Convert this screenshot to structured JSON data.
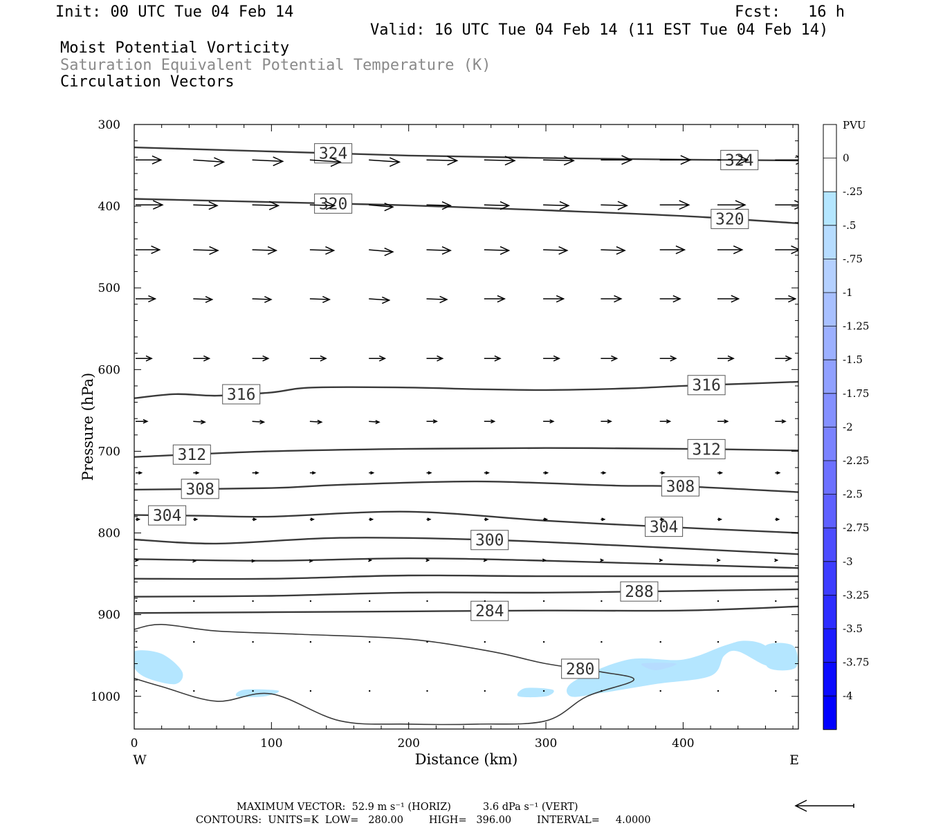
{
  "header": {
    "init": "Init: 00 UTC Tue 04 Feb 14",
    "fcst": "Fcst:   16 h",
    "valid": "Valid: 16 UTC Tue 04 Feb 14 (11 EST Tue 04 Feb 14)",
    "field1": "Moist Potential Vorticity",
    "field2": "Saturation Equivalent Potential Temperature (K)",
    "field3": "Circulation Vectors"
  },
  "colors": {
    "field2_text": "#8a8a8a",
    "contour": "#3a3a3a",
    "vector": "#000000"
  },
  "chart_data": {
    "type": "cross-section",
    "xlabel": "Distance (km)",
    "ylabel": "Pressure (hPa)",
    "xlim": [
      0,
      484
    ],
    "ylim": [
      1040,
      300
    ],
    "x_ticks": [
      "0",
      "100",
      "200",
      "300",
      "400"
    ],
    "x_tick_values": [
      0,
      100,
      200,
      300,
      400
    ],
    "y_ticks": [
      "300",
      "400",
      "500",
      "600",
      "700",
      "800",
      "900",
      "1000"
    ],
    "y_tick_values": [
      300,
      400,
      500,
      600,
      700,
      800,
      900,
      1000
    ],
    "west_label": "W",
    "east_label": "E",
    "theta_e_contours": [
      {
        "value": 324,
        "label": "324",
        "x": [
          0,
          100,
          200,
          300,
          400,
          484
        ],
        "p": [
          328,
          333,
          338,
          341,
          343,
          344
        ],
        "label_x": [
          145,
          441
        ]
      },
      {
        "value": 320,
        "label": "320",
        "x": [
          0,
          100,
          200,
          300,
          400,
          484
        ],
        "p": [
          391,
          395,
          399,
          405,
          412,
          421
        ],
        "label_x": [
          145,
          434
        ]
      },
      {
        "value": 316,
        "label": "316",
        "x": [
          0,
          30,
          60,
          100,
          130,
          200,
          250,
          300,
          360,
          400,
          450,
          484
        ],
        "p": [
          635,
          630,
          632,
          628,
          622,
          622,
          624,
          625,
          623,
          620,
          617,
          615
        ],
        "label_x": [
          78,
          417
        ]
      },
      {
        "value": 312,
        "label": "312",
        "x": [
          0,
          100,
          200,
          300,
          400,
          484
        ],
        "p": [
          707,
          700,
          697,
          696,
          697,
          699
        ],
        "label_x": [
          42,
          417
        ]
      },
      {
        "value": 308,
        "label": "308",
        "x": [
          0,
          100,
          150,
          250,
          350,
          400,
          484
        ],
        "p": [
          747,
          745,
          741,
          737,
          742,
          743,
          750
        ],
        "label_x": [
          48,
          398
        ]
      },
      {
        "value": 304,
        "label": "304",
        "x": [
          0,
          50,
          100,
          200,
          300,
          380,
          484
        ],
        "p": [
          778,
          779,
          780,
          774,
          785,
          792,
          800
        ],
        "label_x": [
          24,
          386
        ]
      },
      {
        "value": 300,
        "label": "300",
        "x": [
          0,
          60,
          150,
          250,
          350,
          484
        ],
        "p": [
          808,
          813,
          806,
          808,
          815,
          826
        ],
        "label_x": [
          259
        ]
      },
      {
        "value": 296,
        "label": "",
        "x": [
          0,
          100,
          200,
          300,
          484
        ],
        "p": [
          832,
          834,
          831,
          834,
          843
        ],
        "label_x": []
      },
      {
        "value": 292,
        "label": "",
        "x": [
          0,
          100,
          200,
          300,
          484
        ],
        "p": [
          856,
          856,
          852,
          853,
          853
        ],
        "label_x": []
      },
      {
        "value": 288,
        "label": "288",
        "x": [
          0,
          100,
          200,
          300,
          400,
          484
        ],
        "p": [
          878,
          877,
          873,
          873,
          871,
          869
        ],
        "label_x": [
          368
        ]
      },
      {
        "value": 284,
        "label": "284",
        "x": [
          0,
          100,
          200,
          300,
          400,
          484
        ],
        "p": [
          898,
          897,
          896,
          895,
          895,
          890
        ],
        "label_x": [
          259
        ]
      },
      {
        "value": 280,
        "label": "280",
        "x": [
          0,
          20,
          60,
          120,
          200,
          260,
          300,
          340,
          364,
          330,
          300,
          250,
          200,
          150,
          100,
          60,
          20,
          0
        ],
        "p": [
          918,
          912,
          920,
          924,
          930,
          945,
          960,
          970,
          980,
          1000,
          1030,
          1034,
          1034,
          1030,
          997,
          1006,
          988,
          978
        ],
        "label_x": [
          325
        ]
      }
    ],
    "mpv_colorbar": {
      "unit": "PVU",
      "levels": [
        "0",
        "-.25",
        "-.5",
        "-.75",
        "-1",
        "-1.25",
        "-1.5",
        "-1.75",
        "-2",
        "-2.25",
        "-2.5",
        "-2.75",
        "-3",
        "-3.25",
        "-3.5",
        "-3.75",
        "-4"
      ],
      "colors": [
        "#ffffff",
        "#ffffff",
        "#b4e6ff",
        "#b6dcff",
        "#b4d0ff",
        "#a8c0ff",
        "#9cb0ff",
        "#90a0ff",
        "#8490ff",
        "#7a82ff",
        "#6c70ff",
        "#5e60ff",
        "#4c4cff",
        "#3c3cff",
        "#2c2cff",
        "#1c1cff",
        "#0a0aff",
        "#0000ff"
      ]
    },
    "mpv_regions": [
      {
        "level": "-.25",
        "x": [
          0,
          20,
          35,
          30,
          10,
          0
        ],
        "p": [
          945,
          948,
          970,
          985,
          978,
          965
        ]
      },
      {
        "level": "-.25",
        "x": [
          80,
          105,
          95,
          75
        ],
        "p": [
          992,
          993,
          1000,
          1000
        ]
      },
      {
        "level": "-.25",
        "x": [
          285,
          305,
          300,
          280
        ],
        "p": [
          990,
          992,
          1000,
          1000
        ]
      },
      {
        "level": "-.25",
        "x": [
          320,
          360,
          400,
          430,
          445,
          460,
          470,
          460,
          440,
          430,
          420,
          380,
          340,
          318
        ],
        "p": [
          982,
          955,
          955,
          938,
          932,
          938,
          960,
          962,
          945,
          950,
          975,
          985,
          996,
          1000
        ]
      },
      {
        "level": "-.25",
        "x": [
          460,
          480,
          482,
          462
        ],
        "p": [
          938,
          938,
          965,
          965
        ]
      },
      {
        "level": "-.5",
        "x": [
          370,
          395,
          380
        ],
        "p": [
          960,
          960,
          968
        ]
      }
    ],
    "vectors": {
      "x_columns": [
        0,
        42,
        85,
        127,
        170,
        212,
        254,
        297,
        339,
        382,
        424,
        466
      ],
      "levels": [
        {
          "p": 340,
          "u": [
            35,
            42,
            42,
            42,
            42,
            42,
            42,
            42,
            42,
            42,
            42,
            42
          ],
          "dp": [
            0,
            3,
            2,
            3,
            3,
            1,
            1,
            1,
            0,
            0,
            0,
            0
          ]
        },
        {
          "p": 395,
          "u": [
            37,
            33,
            36,
            34,
            33,
            33,
            34,
            35,
            36,
            40,
            38,
            40
          ],
          "dp": [
            0,
            1,
            1,
            1,
            3,
            1,
            1,
            1,
            1,
            0,
            0,
            0
          ]
        },
        {
          "p": 450,
          "u": [
            33,
            34,
            33,
            33,
            33,
            33,
            34,
            33,
            33,
            34,
            34,
            34
          ],
          "dp": [
            0,
            1,
            1,
            1,
            3,
            1,
            1,
            1,
            1,
            0,
            0,
            0
          ]
        },
        {
          "p": 510,
          "u": [
            27,
            26,
            26,
            27,
            28,
            28,
            28,
            28,
            28,
            28,
            29,
            28
          ],
          "dp": [
            0,
            1,
            1,
            1,
            2,
            1,
            0,
            0,
            0,
            0,
            0,
            0
          ]
        },
        {
          "p": 583,
          "u": [
            22,
            22,
            22,
            22,
            22,
            22,
            22,
            22,
            22,
            22,
            22,
            22
          ],
          "dp": [
            0,
            0,
            0,
            0,
            0,
            0,
            0,
            0,
            0,
            0,
            0,
            0
          ]
        },
        {
          "p": 660,
          "u": [
            16,
            16,
            16,
            16,
            14,
            14,
            14,
            14,
            14,
            14,
            14,
            14
          ],
          "dp": [
            0,
            1,
            1,
            1,
            1,
            0,
            0,
            0,
            0,
            0,
            0,
            0
          ]
        },
        {
          "p": 723,
          "u": [
            8,
            7,
            8,
            7,
            6,
            6,
            6,
            6,
            6,
            6,
            6,
            6
          ],
          "dp": [
            0,
            0,
            0,
            0,
            0,
            0,
            0,
            0,
            0,
            0,
            0,
            0
          ]
        },
        {
          "p": 780,
          "u": [
            5,
            5,
            5,
            5,
            5,
            5,
            5,
            5,
            5,
            5,
            5,
            5
          ],
          "dp": [
            0,
            0,
            0,
            0,
            0,
            0,
            0,
            0,
            0,
            0,
            0,
            0
          ]
        },
        {
          "p": 830,
          "u": [
            3,
            3,
            3,
            3,
            3,
            3,
            3,
            3,
            3,
            3,
            3,
            3
          ],
          "dp": [
            0,
            1,
            1,
            1,
            0,
            0,
            0,
            0,
            0,
            0,
            0,
            0
          ]
        },
        {
          "p": 880,
          "u": [
            1,
            1,
            1,
            1,
            1,
            1,
            1,
            1,
            1,
            1,
            1,
            1
          ],
          "dp": [
            0,
            1,
            1,
            1,
            0,
            0,
            0,
            0,
            0,
            0,
            0,
            0
          ]
        },
        {
          "p": 930,
          "u": [
            0.5,
            0.5,
            0.5,
            0.5,
            0.5,
            0.5,
            0.5,
            0.5,
            0.5,
            0.5,
            0.5,
            0.5
          ],
          "dp": [
            0,
            1,
            1,
            1,
            0,
            0,
            0,
            0,
            0,
            0,
            0,
            0
          ]
        },
        {
          "p": 990,
          "u": [
            0.5,
            0.5,
            0.5,
            0.5,
            0.5,
            0.5,
            0.5,
            0.5,
            0.5,
            0.5,
            0.5,
            0.5
          ],
          "dp": [
            0,
            0,
            0,
            0,
            0,
            0,
            0,
            0,
            0,
            0,
            0,
            0
          ]
        }
      ]
    },
    "footer_vector": "MAXIMUM VECTOR:  52.9 m s⁻¹ (HORIZ)          3.6 dPa s⁻¹ (VERT)",
    "footer_contours": "CONTOURS:  UNITS=K  LOW=   280.00        HIGH=   396.00        INTERVAL=     4.0000"
  }
}
